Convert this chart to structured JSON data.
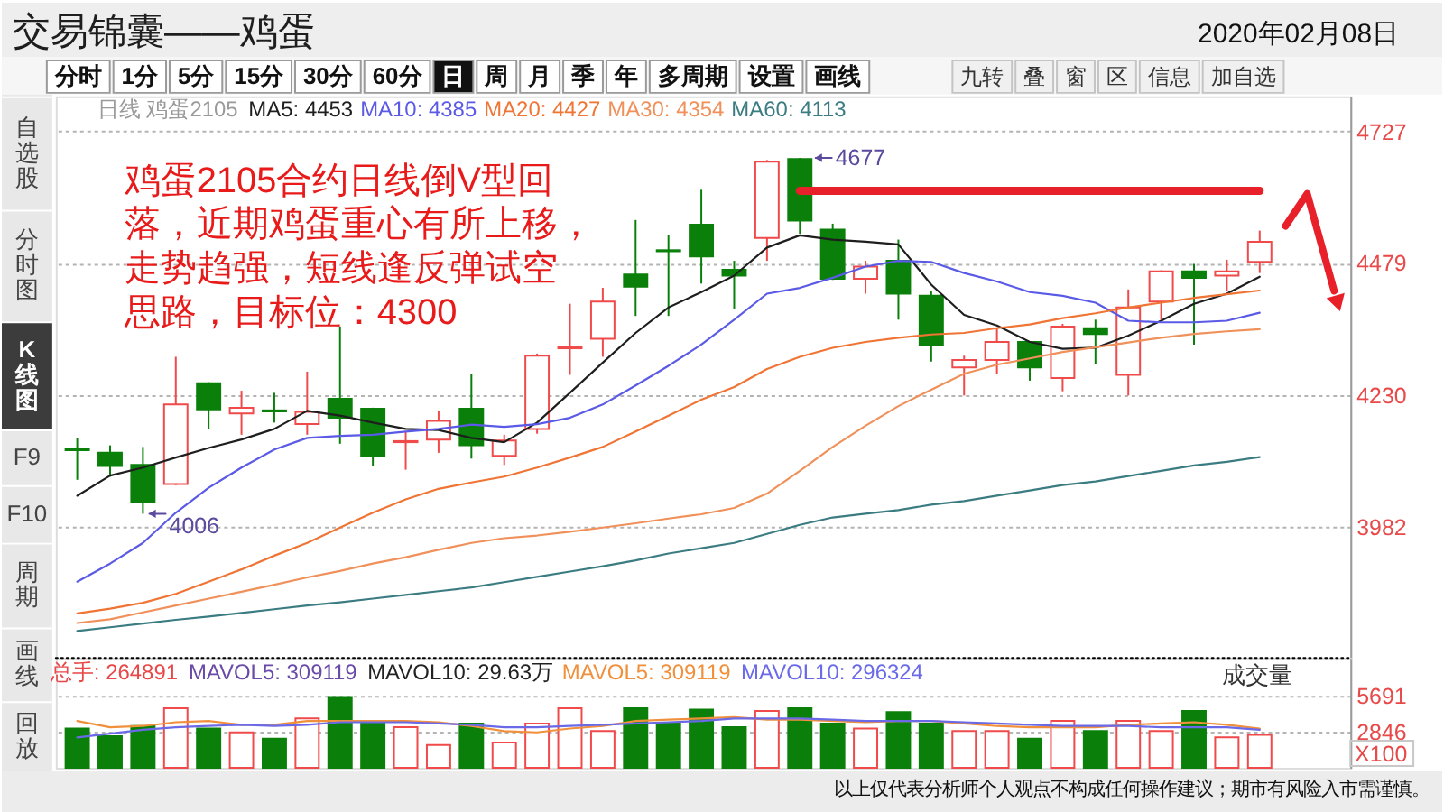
{
  "chart_data": [
    {
      "type": "candlestick",
      "title": "交易锦囊——鸡蛋",
      "subtitle": "2020年02月08日",
      "categories": [
        null,
        null,
        null,
        null,
        null,
        null,
        null,
        null,
        null,
        null,
        null,
        null,
        null,
        null,
        null,
        null,
        null,
        null,
        null,
        null,
        null,
        null,
        null,
        null,
        null,
        null,
        null,
        null,
        null,
        null,
        null,
        null,
        null,
        null,
        null,
        null,
        null
      ],
      "ohlc": [
        [
          4128,
          4149,
          4070,
          4126
        ],
        [
          4121,
          4135,
          4076,
          4096
        ],
        [
          4098,
          4132,
          4006,
          4028
        ],
        [
          4062,
          4302,
          4060,
          4212
        ],
        [
          4252,
          4254,
          4166,
          4203
        ],
        [
          4195,
          4238,
          4155,
          4206
        ],
        [
          4201,
          4234,
          4178,
          4199
        ],
        [
          4175,
          4274,
          4155,
          4198
        ],
        [
          4223,
          4359,
          4138,
          4187
        ],
        [
          4204,
          4206,
          4096,
          4115
        ],
        [
          4141,
          4161,
          4089,
          4143
        ],
        [
          4146,
          4200,
          4121,
          4181
        ],
        [
          4204,
          4270,
          4110,
          4135
        ],
        [
          4115,
          4155,
          4098,
          4144
        ],
        [
          4166,
          4308,
          4157,
          4304
        ],
        [
          4318,
          4402,
          4268,
          4320
        ],
        [
          4336,
          4432,
          4302,
          4406
        ],
        [
          4457,
          4560,
          4379,
          4434
        ],
        [
          4503,
          4531,
          4379,
          4501
        ],
        [
          4551,
          4617,
          4440,
          4491
        ],
        [
          4466,
          4483,
          4393,
          4455
        ],
        [
          4526,
          4673,
          4483,
          4670
        ],
        [
          4675,
          4677,
          4534,
          4559
        ],
        [
          4542,
          4553,
          4447,
          4449
        ],
        [
          4449,
          4483,
          4421,
          4472
        ],
        [
          4483,
          4523,
          4372,
          4421
        ],
        [
          4417,
          4427,
          4293,
          4325
        ],
        [
          4282,
          4304,
          4229,
          4296
        ],
        [
          4296,
          4356,
          4270,
          4330
        ],
        [
          4330,
          4331,
          4257,
          4282
        ],
        [
          4262,
          4364,
          4237,
          4359
        ],
        [
          4356,
          4372,
          4289,
          4345
        ],
        [
          4268,
          4429,
          4229,
          4395
        ],
        [
          4406,
          4465,
          4372,
          4463
        ],
        [
          4463,
          4477,
          4325,
          4451
        ],
        [
          4455,
          4485,
          4427,
          4463
        ],
        [
          4481,
          4540,
          4460,
          4519
        ]
      ],
      "colors": [
        "#0a800a",
        "#0a800a",
        "#0a800a",
        "#f04a4a",
        "#0a800a",
        "#f04a4a",
        "#0a800a",
        "#f04a4a",
        "#0a800a",
        "#0a800a",
        "#f04a4a",
        "#f04a4a",
        "#0a800a",
        "#f04a4a",
        "#f04a4a",
        "#f04a4a",
        "#f04a4a",
        "#0a800a",
        "#0a800a",
        "#0a800a",
        "#0a800a",
        "#f04a4a",
        "#0a800a",
        "#0a800a",
        "#f04a4a",
        "#0a800a",
        "#0a800a",
        "#f04a4a",
        "#f04a4a",
        "#0a800a",
        "#f04a4a",
        "#0a800a",
        "#f04a4a",
        "#f04a4a",
        "#0a800a",
        "#f04a4a",
        "#f04a4a"
      ],
      "series": [
        {
          "type": "line",
          "name": "MA5: 4453",
          "color": "#1e1e1e",
          "values": [
            4040,
            4078,
            4093,
            4112,
            4130,
            4146,
            4166,
            4200,
            4191,
            4178,
            4166,
            4164,
            4149,
            4141,
            4178,
            4234,
            4291,
            4347,
            4395,
            4424,
            4455,
            4508,
            4531,
            4523,
            4519,
            4514,
            4438,
            4381,
            4361,
            4330,
            4317,
            4319,
            4342,
            4370,
            4402,
            4421,
            4453
          ]
        },
        {
          "type": "line",
          "name": "MA10: 4385",
          "color": "#5a5ae6",
          "values": [
            3878,
            3912,
            3951,
            4008,
            4055,
            4093,
            4127,
            4149,
            4153,
            4155,
            4161,
            4166,
            4174,
            4170,
            4175,
            4187,
            4212,
            4248,
            4285,
            4325,
            4372,
            4421,
            4432,
            4451,
            4472,
            4483,
            4481,
            4460,
            4444,
            4424,
            4417,
            4404,
            4370,
            4367,
            4367,
            4370,
            4385
          ]
        },
        {
          "type": "line",
          "name": "MA20: 4427",
          "color": "#f07434",
          "values": [
            3818,
            3827,
            3838,
            3855,
            3878,
            3901,
            3927,
            3951,
            3980,
            4008,
            4033,
            4053,
            4065,
            4076,
            4093,
            4112,
            4132,
            4161,
            4191,
            4221,
            4245,
            4279,
            4302,
            4319,
            4330,
            4338,
            4344,
            4347,
            4356,
            4363,
            4375,
            4384,
            4395,
            4404,
            4413,
            4420,
            4427
          ]
        },
        {
          "type": "line",
          "name": "MA30: 4354",
          "color": "#f0905a",
          "values": [
            3800,
            3807,
            3820,
            3833,
            3846,
            3859,
            3872,
            3886,
            3898,
            3912,
            3924,
            3938,
            3951,
            3960,
            3965,
            3972,
            3980,
            3988,
            3997,
            4005,
            4017,
            4044,
            4087,
            4132,
            4172,
            4209,
            4240,
            4270,
            4287,
            4299,
            4311,
            4320,
            4329,
            4338,
            4345,
            4350,
            4354
          ]
        },
        {
          "type": "line",
          "name": "MA60: 4113",
          "color": "#3a7c82",
          "values": [
            3785,
            3792,
            3799,
            3806,
            3812,
            3819,
            3826,
            3833,
            3839,
            3846,
            3853,
            3860,
            3867,
            3877,
            3887,
            3897,
            3907,
            3918,
            3931,
            3941,
            3951,
            3968,
            3985,
            3999,
            4006,
            4013,
            4023,
            4030,
            4040,
            4050,
            4060,
            4067,
            4077,
            4087,
            4097,
            4104,
            4113
          ]
        },
        {
          "type": "line",
          "color": "#e8202a",
          "values": [
            null,
            null,
            null,
            null,
            null,
            null,
            null,
            null,
            null,
            null,
            null,
            null,
            null,
            null,
            null,
            null,
            null,
            null,
            null,
            null,
            null,
            null,
            4615,
            4615,
            4615,
            4615,
            4615,
            4615,
            4615,
            4615,
            4615,
            4615,
            4615,
            4615,
            4615,
            4615,
            4615
          ]
        }
      ],
      "ylim": [
        3734,
        4793
      ],
      "yticks": [
        3982,
        4230,
        4479,
        4727
      ],
      "grid": "y",
      "tick_labels": "y",
      "legend": "top left",
      "legend_title": "日线 鸡蛋2105",
      "annotations": [
        "鸡蛋2105合约日线倒V型回落，近期鸡蛋重心有所上移，走势趋强，短线逢反弹试空思路，目标位：4300",
        "4677",
        "4006",
        "分时",
        "1分",
        "5分",
        "15分",
        "30分",
        "60分",
        "日",
        "周",
        "月",
        "季",
        "年",
        "多周期",
        "设置",
        "画线",
        "九转",
        "叠",
        "窗",
        "区",
        "信息",
        "加自选",
        "自选股",
        "分时图",
        "K线图",
        "F9",
        "F10",
        "周期",
        "画线",
        "回放"
      ]
    },
    {
      "type": "bar",
      "categories": [
        null,
        null,
        null,
        null,
        null,
        null,
        null,
        null,
        null,
        null,
        null,
        null,
        null,
        null,
        null,
        null,
        null,
        null,
        null,
        null,
        null,
        null,
        null,
        null,
        null,
        null,
        null,
        null,
        null,
        null,
        null,
        null,
        null,
        null,
        null,
        null,
        null
      ],
      "series": [
        {
          "type": "bar",
          "colors": [
            "#0a800a",
            "#0a800a",
            "#0a800a",
            "#f04a4a",
            "#0a800a",
            "#f04a4a",
            "#0a800a",
            "#f04a4a",
            "#0a800a",
            "#0a800a",
            "#f04a4a",
            "#f04a4a",
            "#0a800a",
            "#f04a4a",
            "#f04a4a",
            "#f04a4a",
            "#f04a4a",
            "#0a800a",
            "#0a800a",
            "#0a800a",
            "#0a800a",
            "#f04a4a",
            "#0a800a",
            "#0a800a",
            "#f04a4a",
            "#0a800a",
            "#0a800a",
            "#f04a4a",
            "#f04a4a",
            "#0a800a",
            "#f04a4a",
            "#0a800a",
            "#f04a4a",
            "#f04a4a",
            "#0a800a",
            "#f04a4a",
            "#f04a4a"
          ],
          "values": [
            3100,
            2500,
            3300,
            4700,
            3100,
            2800,
            2300,
            3900,
            5600,
            3600,
            3200,
            1800,
            3500,
            2000,
            3500,
            4700,
            2900,
            4700,
            3500,
            4600,
            3200,
            4500,
            4700,
            3500,
            3100,
            4400,
            3500,
            2900,
            2900,
            2300,
            3700,
            2900,
            3700,
            2900,
            4500,
            2400,
            2600
          ]
        },
        {
          "type": "line",
          "name": "MAVOL5: 309119",
          "color": "#f0903c",
          "values": [
            3700,
            3200,
            3300,
            3600,
            3700,
            3400,
            3400,
            3700,
            3700,
            3700,
            3700,
            3600,
            3300,
            2900,
            2800,
            3100,
            3300,
            3700,
            3800,
            3900,
            4000,
            3800,
            3800,
            3700,
            3600,
            3700,
            3700,
            3500,
            3300,
            3200,
            3200,
            3200,
            3400,
            3500,
            3600,
            3400,
            3100
          ]
        },
        {
          "type": "line",
          "name": "MAVOL10: 296324",
          "color": "#6a6ae8",
          "values": [
            2400,
            2700,
            3000,
            3200,
            3300,
            3400,
            3300,
            3400,
            3600,
            3600,
            3600,
            3500,
            3400,
            3200,
            3200,
            3300,
            3400,
            3500,
            3600,
            3700,
            3900,
            3900,
            3900,
            3800,
            3700,
            3700,
            3700,
            3600,
            3500,
            3400,
            3300,
            3300,
            3300,
            3200,
            3200,
            3200,
            3000
          ]
        }
      ],
      "ylim": [
        0,
        8677
      ],
      "yticks": [
        2846,
        5691
      ],
      "ylabel": "X100",
      "grid": "y",
      "tick_labels": "y",
      "legend": "top",
      "annotations": [
        "总手: 264891",
        "MAVOL5: 309119",
        "MAVOL10: 29.63万",
        "成交量",
        "以上仅代表分析师个人观点不构成任何操作建议；期市有风险入市需谨慎。"
      ]
    }
  ]
}
